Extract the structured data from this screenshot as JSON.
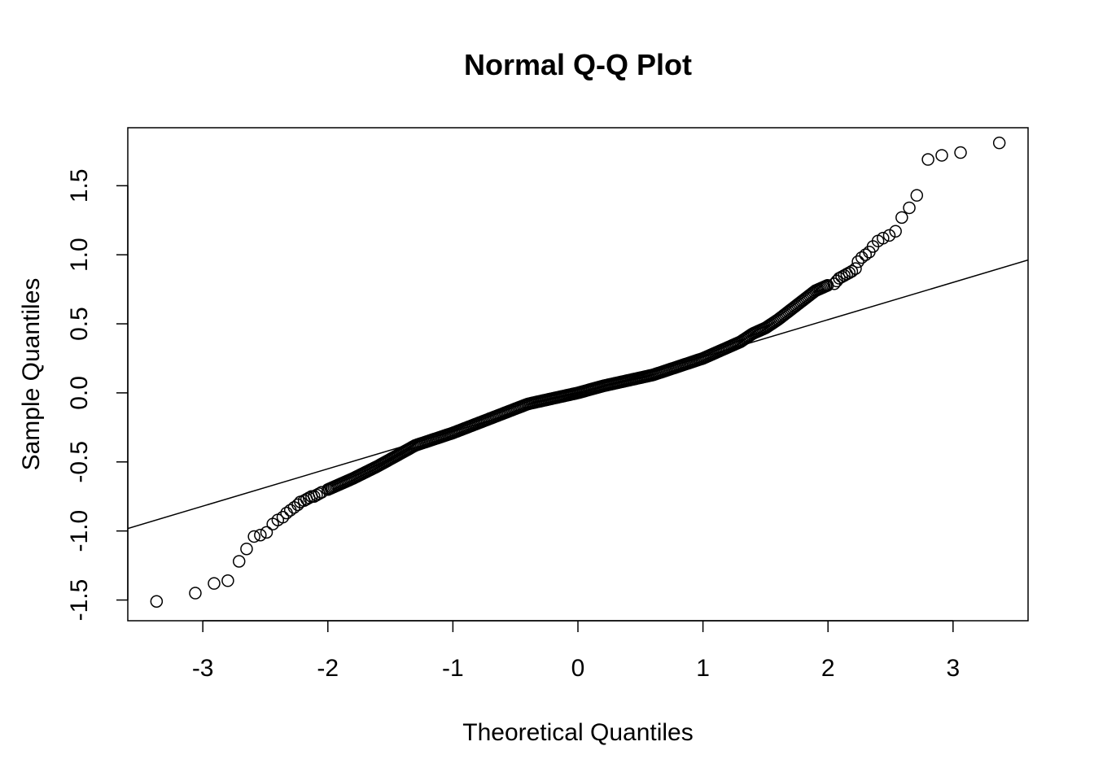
{
  "chart_data": {
    "type": "scatter",
    "title": "Normal Q-Q Plot",
    "xlabel": "Theoretical Quantiles",
    "ylabel": "Sample Quantiles",
    "xlim": [
      -3.6,
      3.6
    ],
    "ylim": [
      -1.65,
      1.92
    ],
    "xticks": [
      -3,
      -2,
      -1,
      0,
      1,
      2,
      3
    ],
    "xtick_labels": [
      "-3",
      "-2",
      "-1",
      "0",
      "1",
      "2",
      "3"
    ],
    "yticks": [
      -1.5,
      -1.0,
      -0.5,
      0.0,
      0.5,
      1.0,
      1.5
    ],
    "ytick_labels": [
      "-1.5",
      "-1.0",
      "-0.5",
      "0.0",
      "0.5",
      "1.0",
      "1.5"
    ],
    "grid": false,
    "marker": "open-circle",
    "reference_line": {
      "intercept": -0.01,
      "slope": 0.27
    },
    "tail_points": {
      "x": [
        -3.37,
        -3.06,
        -2.91,
        -2.8,
        -2.71,
        -2.65,
        -2.59,
        -2.54,
        -2.49,
        -2.44,
        -2.4,
        -2.36,
        -2.33,
        -2.3,
        -2.27,
        -2.24,
        -2.22,
        -2.19,
        -2.17,
        -2.15,
        -2.13,
        -2.11,
        -2.09,
        -2.07,
        -2.05,
        2.05,
        2.07,
        2.09,
        2.11,
        2.13,
        2.15,
        2.17,
        2.19,
        2.22,
        2.24,
        2.27,
        2.3,
        2.33,
        2.36,
        2.4,
        2.44,
        2.49,
        2.54,
        2.59,
        2.65,
        2.71,
        2.8,
        2.91,
        3.06,
        3.37
      ],
      "y": [
        -1.51,
        -1.45,
        -1.38,
        -1.36,
        -1.22,
        -1.13,
        -1.04,
        -1.03,
        -1.01,
        -0.95,
        -0.92,
        -0.9,
        -0.87,
        -0.85,
        -0.83,
        -0.81,
        -0.79,
        -0.78,
        -0.77,
        -0.76,
        -0.75,
        -0.75,
        -0.74,
        -0.73,
        -0.72,
        0.79,
        0.81,
        0.83,
        0.84,
        0.85,
        0.86,
        0.87,
        0.88,
        0.9,
        0.95,
        0.98,
        1.0,
        1.02,
        1.06,
        1.1,
        1.12,
        1.14,
        1.17,
        1.27,
        1.34,
        1.43,
        1.69,
        1.72,
        1.74,
        1.81
      ]
    },
    "body_curve": {
      "x": [
        -2.0,
        -1.8,
        -1.6,
        -1.5,
        -1.4,
        -1.3,
        -1.2,
        -1.1,
        -1.0,
        -0.8,
        -0.6,
        -0.4,
        -0.2,
        0.0,
        0.2,
        0.4,
        0.6,
        0.8,
        1.0,
        1.1,
        1.2,
        1.3,
        1.4,
        1.5,
        1.6,
        1.7,
        1.8,
        1.9,
        2.0
      ],
      "y": [
        -0.7,
        -0.62,
        -0.53,
        -0.48,
        -0.43,
        -0.38,
        -0.35,
        -0.32,
        -0.29,
        -0.22,
        -0.15,
        -0.08,
        -0.04,
        0.0,
        0.05,
        0.09,
        0.13,
        0.19,
        0.25,
        0.29,
        0.33,
        0.37,
        0.43,
        0.47,
        0.53,
        0.6,
        0.67,
        0.74,
        0.78
      ]
    }
  }
}
